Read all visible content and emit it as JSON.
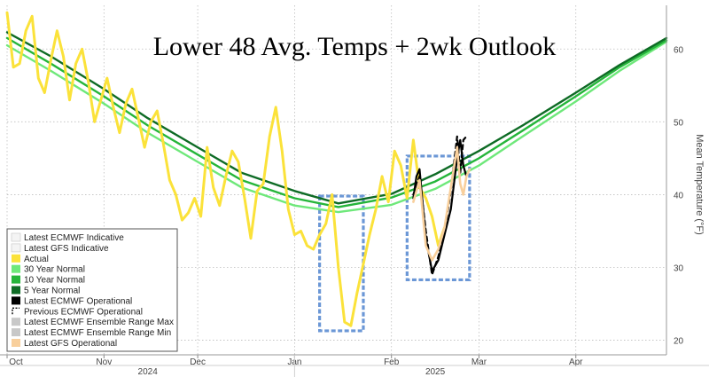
{
  "chart_data": {
    "type": "line",
    "title": "Lower 48 Avg. Temps + 2wk Outlook",
    "ylabel": "Mean Temperature (°F)",
    "ylim": [
      18,
      66
    ],
    "y_ticks": [
      20,
      30,
      40,
      50,
      60
    ],
    "x_range": [
      "2024-10-01",
      "2025-04-30"
    ],
    "x_month_ticks": [
      {
        "label": "Oct",
        "date": "2024-10-01"
      },
      {
        "label": "Nov",
        "date": "2024-11-01"
      },
      {
        "label": "Dec",
        "date": "2024-12-01"
      },
      {
        "label": "Jan",
        "date": "2025-01-01"
      },
      {
        "label": "Feb",
        "date": "2025-02-01"
      },
      {
        "label": "Mar",
        "date": "2025-03-01"
      },
      {
        "label": "Apr",
        "date": "2025-04-01"
      }
    ],
    "x_year_labels": [
      {
        "label": "2024",
        "date": "2024-11-15"
      },
      {
        "label": "2025",
        "date": "2025-02-15"
      }
    ],
    "legend_position": "bottom-left",
    "legend": [
      {
        "label": "Latest ECMWF Indicative",
        "color": "#f4f4f4",
        "style": "swatch-light"
      },
      {
        "label": "Latest GFS Indicative",
        "color": "#f4f4f4",
        "style": "swatch-light"
      },
      {
        "label": "Actual",
        "color": "#fbe23a",
        "style": "swatch"
      },
      {
        "label": "30 Year Normal",
        "color": "#6ee87a",
        "style": "swatch"
      },
      {
        "label": "10 Year Normal",
        "color": "#25b53a",
        "style": "swatch"
      },
      {
        "label": "5 Year Normal",
        "color": "#0e6b25",
        "style": "swatch"
      },
      {
        "label": "Latest ECMWF Operational",
        "color": "#000000",
        "style": "swatch"
      },
      {
        "label": "Previous ECMWF Operational",
        "color": "#000000",
        "style": "dashed"
      },
      {
        "label": "Latest ECMWF Ensemble Range Max",
        "color": "#c8c8c8",
        "style": "swatch"
      },
      {
        "label": "Latest ECMWF Ensemble Range Min",
        "color": "#c8c8c8",
        "style": "swatch"
      },
      {
        "label": "Latest GFS Operational",
        "color": "#f8cf9c",
        "style": "swatch"
      }
    ],
    "series": [
      {
        "name": "30 Year Normal",
        "color": "#6ee87a",
        "points": [
          [
            "2024-10-01",
            60.5
          ],
          [
            "2024-10-15",
            57.0
          ],
          [
            "2024-11-01",
            52.5
          ],
          [
            "2024-11-15",
            48.5
          ],
          [
            "2024-12-01",
            44.5
          ],
          [
            "2024-12-15",
            41.0
          ],
          [
            "2025-01-01",
            38.5
          ],
          [
            "2025-01-15",
            37.6
          ],
          [
            "2025-02-01",
            38.6
          ],
          [
            "2025-02-15",
            40.8
          ],
          [
            "2025-03-01",
            44.0
          ],
          [
            "2025-03-15",
            48.0
          ],
          [
            "2025-04-01",
            52.8
          ],
          [
            "2025-04-15",
            57.0
          ],
          [
            "2025-04-30",
            61.0
          ]
        ]
      },
      {
        "name": "10 Year Normal",
        "color": "#25b53a",
        "points": [
          [
            "2024-10-01",
            61.5
          ],
          [
            "2024-10-15",
            58.0
          ],
          [
            "2024-11-01",
            53.5
          ],
          [
            "2024-11-15",
            49.5
          ],
          [
            "2024-12-01",
            45.5
          ],
          [
            "2024-12-15",
            42.0
          ],
          [
            "2025-01-01",
            39.5
          ],
          [
            "2025-01-15",
            38.3
          ],
          [
            "2025-02-01",
            39.6
          ],
          [
            "2025-02-15",
            41.8
          ],
          [
            "2025-03-01",
            45.0
          ],
          [
            "2025-03-15",
            48.8
          ],
          [
            "2025-04-01",
            53.5
          ],
          [
            "2025-04-15",
            57.5
          ],
          [
            "2025-04-30",
            61.2
          ]
        ]
      },
      {
        "name": "5 Year Normal",
        "color": "#0e6b25",
        "points": [
          [
            "2024-10-01",
            62.3
          ],
          [
            "2024-10-15",
            59.0
          ],
          [
            "2024-11-01",
            54.5
          ],
          [
            "2024-11-15",
            50.5
          ],
          [
            "2024-12-01",
            46.5
          ],
          [
            "2024-12-15",
            43.0
          ],
          [
            "2025-01-01",
            40.5
          ],
          [
            "2025-01-15",
            38.8
          ],
          [
            "2025-02-01",
            40.1
          ],
          [
            "2025-02-15",
            42.8
          ],
          [
            "2025-03-01",
            46.0
          ],
          [
            "2025-03-15",
            49.5
          ],
          [
            "2025-04-01",
            54.0
          ],
          [
            "2025-04-15",
            57.8
          ],
          [
            "2025-04-30",
            61.5
          ]
        ]
      },
      {
        "name": "Actual",
        "color": "#fbe23a",
        "points": [
          [
            "2024-10-01",
            65.0
          ],
          [
            "2024-10-03",
            57.5
          ],
          [
            "2024-10-05",
            58.0
          ],
          [
            "2024-10-07",
            62.5
          ],
          [
            "2024-10-09",
            64.5
          ],
          [
            "2024-10-11",
            56.0
          ],
          [
            "2024-10-13",
            54.0
          ],
          [
            "2024-10-15",
            58.5
          ],
          [
            "2024-10-17",
            62.5
          ],
          [
            "2024-10-19",
            59.0
          ],
          [
            "2024-10-21",
            53.0
          ],
          [
            "2024-10-23",
            58.0
          ],
          [
            "2024-10-25",
            60.0
          ],
          [
            "2024-10-27",
            55.5
          ],
          [
            "2024-10-29",
            50.0
          ],
          [
            "2024-10-31",
            53.0
          ],
          [
            "2024-11-02",
            56.0
          ],
          [
            "2024-11-04",
            52.0
          ],
          [
            "2024-11-06",
            48.5
          ],
          [
            "2024-11-08",
            52.5
          ],
          [
            "2024-11-10",
            54.5
          ],
          [
            "2024-11-12",
            50.5
          ],
          [
            "2024-11-14",
            46.5
          ],
          [
            "2024-11-16",
            50.0
          ],
          [
            "2024-11-18",
            51.5
          ],
          [
            "2024-11-20",
            47.0
          ],
          [
            "2024-11-22",
            42.0
          ],
          [
            "2024-11-24",
            40.0
          ],
          [
            "2024-11-26",
            36.5
          ],
          [
            "2024-11-28",
            37.5
          ],
          [
            "2024-11-30",
            39.5
          ],
          [
            "2024-12-02",
            37.0
          ],
          [
            "2024-12-04",
            46.5
          ],
          [
            "2024-12-06",
            41.0
          ],
          [
            "2024-12-08",
            38.5
          ],
          [
            "2024-12-10",
            42.5
          ],
          [
            "2024-12-12",
            46.0
          ],
          [
            "2024-12-14",
            44.5
          ],
          [
            "2024-12-16",
            39.5
          ],
          [
            "2024-12-18",
            34.0
          ],
          [
            "2024-12-20",
            40.5
          ],
          [
            "2024-12-22",
            41.5
          ],
          [
            "2024-12-24",
            48.0
          ],
          [
            "2024-12-26",
            52.0
          ],
          [
            "2024-12-28",
            46.0
          ],
          [
            "2024-12-30",
            38.0
          ],
          [
            "2025-01-01",
            34.5
          ],
          [
            "2025-01-03",
            35.0
          ],
          [
            "2025-01-05",
            33.0
          ],
          [
            "2025-01-07",
            32.5
          ],
          [
            "2025-01-09",
            34.5
          ],
          [
            "2025-01-11",
            36.0
          ],
          [
            "2025-01-13",
            40.0
          ],
          [
            "2025-01-15",
            30.0
          ],
          [
            "2025-01-17",
            22.5
          ],
          [
            "2025-01-19",
            22.0
          ],
          [
            "2025-01-21",
            26.5
          ],
          [
            "2025-01-23",
            30.5
          ],
          [
            "2025-01-25",
            34.5
          ],
          [
            "2025-01-27",
            38.0
          ],
          [
            "2025-01-29",
            42.5
          ],
          [
            "2025-01-31",
            39.0
          ],
          [
            "2025-02-02",
            46.0
          ],
          [
            "2025-02-04",
            44.0
          ],
          [
            "2025-02-06",
            39.5
          ],
          [
            "2025-02-08",
            47.5
          ],
          [
            "2025-02-10",
            41.0
          ],
          [
            "2025-02-12",
            39.5
          ],
          [
            "2025-02-14",
            37.0
          ],
          [
            "2025-02-16",
            33.0
          ],
          [
            "2025-02-18",
            35.5
          ]
        ]
      },
      {
        "name": "Latest ECMWF Operational",
        "color": "#000000",
        "points": [
          [
            "2025-02-08",
            39.5
          ],
          [
            "2025-02-09",
            42.5
          ],
          [
            "2025-02-10",
            43.5
          ],
          [
            "2025-02-12",
            34.0
          ],
          [
            "2025-02-14",
            29.5
          ],
          [
            "2025-02-16",
            31.0
          ],
          [
            "2025-02-18",
            34.5
          ],
          [
            "2025-02-20",
            38.0
          ],
          [
            "2025-02-22",
            45.0
          ],
          [
            "2025-02-23",
            47.5
          ],
          [
            "2025-02-24",
            44.0
          ],
          [
            "2025-02-25",
            42.5
          ]
        ]
      },
      {
        "name": "Previous ECMWF Operational",
        "color": "#000000",
        "points": [
          [
            "2025-02-08",
            40.0
          ],
          [
            "2025-02-10",
            42.5
          ],
          [
            "2025-02-12",
            35.0
          ],
          [
            "2025-02-14",
            29.0
          ],
          [
            "2025-02-16",
            31.5
          ],
          [
            "2025-02-18",
            35.0
          ],
          [
            "2025-02-20",
            40.5
          ],
          [
            "2025-02-22",
            48.0
          ],
          [
            "2025-02-23",
            43.0
          ],
          [
            "2025-02-24",
            47.5
          ],
          [
            "2025-02-25",
            48.0
          ]
        ]
      },
      {
        "name": "Latest GFS Operational",
        "color": "#f8cf9c",
        "points": [
          [
            "2025-02-08",
            39.0
          ],
          [
            "2025-02-10",
            42.0
          ],
          [
            "2025-02-12",
            33.0
          ],
          [
            "2025-02-14",
            31.0
          ],
          [
            "2025-02-16",
            32.5
          ],
          [
            "2025-02-18",
            35.5
          ],
          [
            "2025-02-20",
            41.0
          ],
          [
            "2025-02-22",
            46.5
          ],
          [
            "2025-02-23",
            41.5
          ],
          [
            "2025-02-24",
            40.0
          ],
          [
            "2025-02-25",
            42.5
          ],
          [
            "2025-02-26",
            43.5
          ]
        ]
      }
    ],
    "highlight_boxes": [
      {
        "x_start": "2025-01-09",
        "x_end": "2025-01-23",
        "y_min": 21.3,
        "y_max": 39.8,
        "color": "#6b97d6"
      },
      {
        "x_start": "2025-02-06",
        "x_end": "2025-02-26",
        "y_min": 28.3,
        "y_max": 45.3,
        "color": "#6b97d6"
      }
    ]
  }
}
